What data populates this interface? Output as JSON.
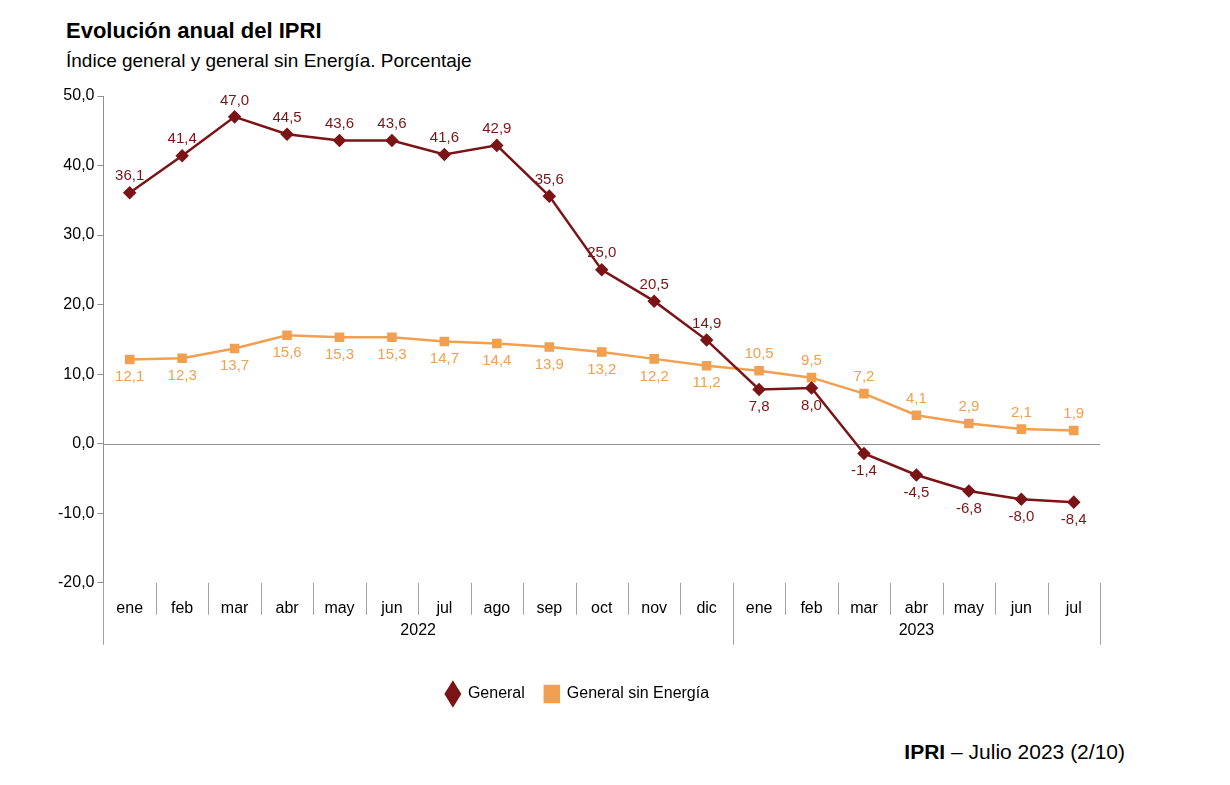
{
  "chart_data": {
    "type": "line",
    "title": "Evolución anual del IPRI",
    "subtitle": "Índice general y general sin Energía. Porcentaje",
    "footer": "IPRI – Julio 2023 (2/10)",
    "categories": [
      "ene",
      "feb",
      "mar",
      "abr",
      "may",
      "jun",
      "jul",
      "ago",
      "sep",
      "oct",
      "nov",
      "dic",
      "ene",
      "feb",
      "mar",
      "abr",
      "may",
      "jun",
      "jul"
    ],
    "category_groups": [
      {
        "label": "2022",
        "count": 12
      },
      {
        "label": "2023",
        "count": 7
      }
    ],
    "series": [
      {
        "name": "General",
        "color": "#7b1416",
        "marker": "diamond",
        "line_style": "solid",
        "values": [
          36.1,
          41.4,
          47.0,
          44.5,
          43.6,
          43.6,
          41.6,
          42.9,
          35.6,
          25.0,
          20.5,
          14.9,
          7.8,
          8.0,
          -1.4,
          -4.5,
          -6.8,
          -8.0,
          -8.4
        ],
        "value_labels": [
          "36,1",
          "41,4",
          "47,0",
          "44,5",
          "43,6",
          "43,6",
          "41,6",
          "42,9",
          "35,6",
          "25,0",
          "20,5",
          "14,9",
          "7,8",
          "8,0",
          "-1,4",
          "-4,5",
          "-6,8",
          "-8,0",
          "-8,4"
        ]
      },
      {
        "name": "General sin Energía",
        "color": "#f0a050",
        "marker": "square",
        "line_style": "solid",
        "values": [
          12.1,
          12.3,
          13.7,
          15.6,
          15.3,
          15.3,
          14.7,
          14.4,
          13.9,
          13.2,
          12.2,
          11.2,
          10.5,
          9.5,
          7.2,
          4.1,
          2.9,
          2.1,
          1.9
        ],
        "value_labels": [
          "12,1",
          "12,3",
          "13,7",
          "15,6",
          "15,3",
          "15,3",
          "14,7",
          "14,4",
          "13,9",
          "13,2",
          "12,2",
          "11,2",
          "10,5",
          "9,5",
          "7,2",
          "4,1",
          "2,9",
          "2,1",
          "1,9"
        ]
      }
    ],
    "ylim": [
      -20,
      50
    ],
    "yticks": [
      {
        "value": -20,
        "label": "-20,0"
      },
      {
        "value": -10,
        "label": "-10,0"
      },
      {
        "value": 0,
        "label": "0,0"
      },
      {
        "value": 10,
        "label": "10,0"
      },
      {
        "value": 20,
        "label": "20,0"
      },
      {
        "value": 30,
        "label": "30,0"
      },
      {
        "value": 40,
        "label": "40,0"
      },
      {
        "value": 50,
        "label": "50,0"
      }
    ],
    "grid": false,
    "legend": "bottom",
    "data_labels": true
  }
}
